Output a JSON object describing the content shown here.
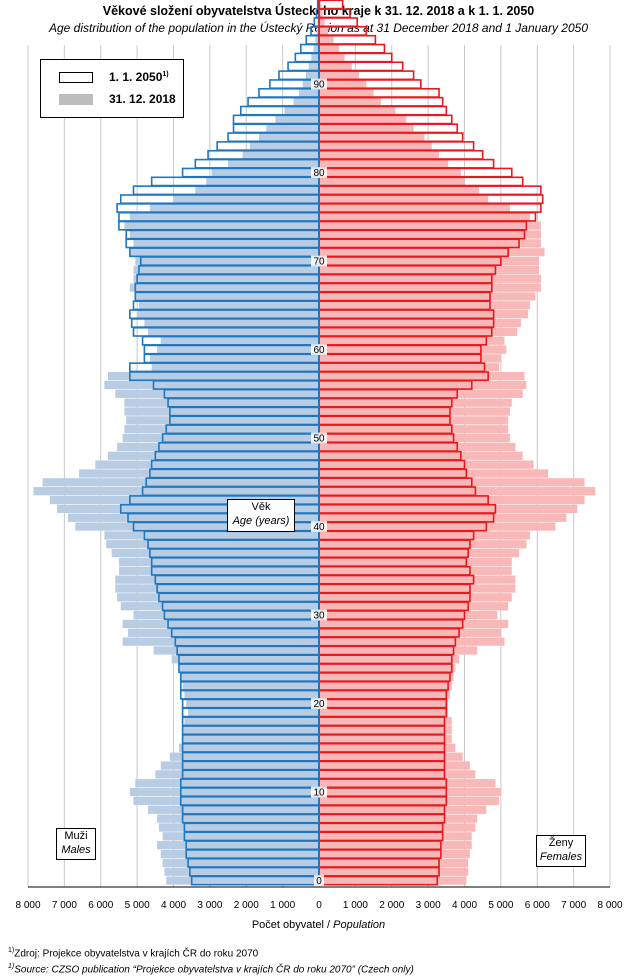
{
  "chart_data": {
    "type": "bar",
    "title": "Věkové složení obyvatelstva  Ústeckého  kraje k 31. 12. 2018  a k 1. 1. 2050",
    "subtitle": "Age distribution of the population  in the Ústecký Region  as at 31 December 2018  and 1 January  2050",
    "xlabel": "Počet obyvatel",
    "xlabel_en": "Population",
    "ylabel": "Věk",
    "ylabel_en": "Age (years)",
    "male_label": "Muži",
    "male_label_en": "Males",
    "female_label": "Ženy",
    "female_label_en": "Females",
    "xlim": [
      -8000,
      8000
    ],
    "x_ticks": [
      "8 000",
      "7 000",
      "6 000",
      "5 000",
      "4 000",
      "3 000",
      "2 000",
      "1 000",
      "0",
      "1 000",
      "2 000",
      "3 000",
      "4 000",
      "5 000",
      "6 000",
      "7 000",
      "8 000"
    ],
    "y_ticks": [
      "0",
      "10",
      "20",
      "30",
      "40",
      "50",
      "60",
      "70",
      "80",
      "90"
    ],
    "ages": [
      0,
      1,
      2,
      3,
      4,
      5,
      6,
      7,
      8,
      9,
      10,
      11,
      12,
      13,
      14,
      15,
      16,
      17,
      18,
      19,
      20,
      21,
      22,
      23,
      24,
      25,
      26,
      27,
      28,
      29,
      30,
      31,
      32,
      33,
      34,
      35,
      36,
      37,
      38,
      39,
      40,
      41,
      42,
      43,
      44,
      45,
      46,
      47,
      48,
      49,
      50,
      51,
      52,
      53,
      54,
      55,
      56,
      57,
      58,
      59,
      60,
      61,
      62,
      63,
      64,
      65,
      66,
      67,
      68,
      69,
      70,
      71,
      72,
      73,
      74,
      75,
      76,
      77,
      78,
      79,
      80,
      81,
      82,
      83,
      84,
      85,
      86,
      87,
      88,
      89,
      90,
      91,
      92,
      93,
      94,
      95,
      96,
      97,
      98,
      99
    ],
    "series": [
      {
        "name": "31. 12. 2018",
        "color": "#b8cce4",
        "color_female": "#f9b8b8",
        "male": [
          4200,
          4250,
          4300,
          4350,
          4450,
          4300,
          4400,
          4450,
          4700,
          5100,
          5200,
          5050,
          4500,
          4350,
          4100,
          3850,
          3750,
          3750,
          3700,
          3600,
          3650,
          3700,
          3750,
          3800,
          3850,
          4050,
          4550,
          5400,
          5250,
          5400,
          5100,
          5450,
          5550,
          5600,
          5600,
          5500,
          5500,
          5700,
          5850,
          5900,
          6700,
          6900,
          7200,
          7400,
          7850,
          7600,
          6600,
          6150,
          5800,
          5550,
          5400,
          5350,
          5300,
          5350,
          5350,
          5600,
          5900,
          5800,
          4600,
          4650,
          4450,
          4350,
          4700,
          4800,
          5000,
          4950,
          5050,
          5200,
          5100,
          5100,
          5050,
          5200,
          5100,
          5200,
          5350,
          5200,
          4650,
          4000,
          3400,
          3100,
          2950,
          2500,
          2100,
          1900,
          1650,
          1450,
          1200,
          950,
          700,
          550,
          450,
          360,
          280,
          210,
          150,
          100,
          65,
          40,
          25,
          15
        ],
        "female": [
          4050,
          4100,
          4100,
          4150,
          4200,
          4200,
          4300,
          4350,
          4600,
          4950,
          5000,
          4850,
          4300,
          4150,
          3950,
          3750,
          3650,
          3650,
          3650,
          3550,
          3550,
          3600,
          3650,
          3700,
          3750,
          3850,
          4350,
          5100,
          5000,
          5200,
          4900,
          5200,
          5300,
          5400,
          5400,
          5300,
          5300,
          5500,
          5700,
          5800,
          6500,
          6800,
          7100,
          7300,
          7600,
          7300,
          6300,
          5900,
          5600,
          5400,
          5250,
          5200,
          5200,
          5250,
          5300,
          5600,
          5700,
          5650,
          4950,
          5000,
          5150,
          5100,
          5450,
          5550,
          5750,
          5800,
          5950,
          6100,
          6100,
          6050,
          6050,
          6200,
          6100,
          6100,
          6100,
          5800,
          5250,
          4650,
          4400,
          4000,
          3900,
          3550,
          3300,
          3100,
          2900,
          2600,
          2400,
          2100,
          1700,
          1500,
          1300,
          1100,
          900,
          700,
          550,
          400,
          250,
          150,
          100,
          50
        ]
      },
      {
        "name": "1. 1. 2050",
        "color": "#ffffff",
        "stroke_male": "#1f77c0",
        "stroke_female": "#e8191e",
        "male": [
          3500,
          3550,
          3600,
          3650,
          3650,
          3700,
          3700,
          3750,
          3750,
          3800,
          3800,
          3800,
          3750,
          3750,
          3750,
          3750,
          3750,
          3750,
          3750,
          3750,
          3750,
          3800,
          3800,
          3800,
          3850,
          3850,
          3900,
          3950,
          4050,
          4150,
          4250,
          4300,
          4400,
          4450,
          4500,
          4600,
          4600,
          4650,
          4700,
          4800,
          5100,
          5250,
          5450,
          5200,
          4850,
          4750,
          4650,
          4600,
          4500,
          4400,
          4300,
          4200,
          4100,
          4100,
          4150,
          4250,
          4550,
          5200,
          5200,
          4800,
          4800,
          4850,
          5100,
          5150,
          5200,
          5100,
          5050,
          5050,
          5000,
          4950,
          4900,
          5200,
          5300,
          5300,
          5500,
          5500,
          5550,
          5450,
          5100,
          4600,
          3750,
          3400,
          3050,
          2800,
          2500,
          2350,
          2350,
          2150,
          1950,
          1650,
          1350,
          1100,
          850,
          650,
          500,
          350,
          220,
          130,
          70,
          35
        ],
        "female": [
          3250,
          3300,
          3300,
          3350,
          3350,
          3400,
          3400,
          3450,
          3450,
          3500,
          3500,
          3500,
          3450,
          3450,
          3450,
          3450,
          3450,
          3450,
          3450,
          3500,
          3500,
          3500,
          3550,
          3600,
          3650,
          3650,
          3700,
          3750,
          3850,
          3950,
          4000,
          4100,
          4150,
          4150,
          4250,
          4150,
          4050,
          4100,
          4150,
          4250,
          4600,
          4800,
          4850,
          4650,
          4300,
          4200,
          4050,
          4000,
          3900,
          3800,
          3700,
          3650,
          3600,
          3600,
          3650,
          3800,
          4200,
          4650,
          4550,
          4450,
          4450,
          4600,
          4750,
          4800,
          4800,
          4700,
          4700,
          4750,
          4750,
          4850,
          5000,
          5200,
          5500,
          5650,
          5700,
          5950,
          6100,
          6150,
          6100,
          5600,
          5300,
          4800,
          4500,
          4250,
          3950,
          3800,
          3650,
          3500,
          3400,
          3300,
          2800,
          2600,
          2300,
          2000,
          1800,
          1550,
          1300,
          1050,
          850,
          650
        ]
      }
    ],
    "legend": {
      "placement": "top-left",
      "entries": [
        "1. 1. 2050",
        "31. 12. 2018"
      ],
      "footnote_mark": "1)"
    },
    "notes": [
      "Zdroj: Projekce obyvatelstva v krajích ČR do roku 2070",
      "Source: CZSO publication “Projekce obyvatelstva v krajích ČR do roku 2070” (Czech only)"
    ],
    "note_mark": "1)",
    "grid": true
  }
}
